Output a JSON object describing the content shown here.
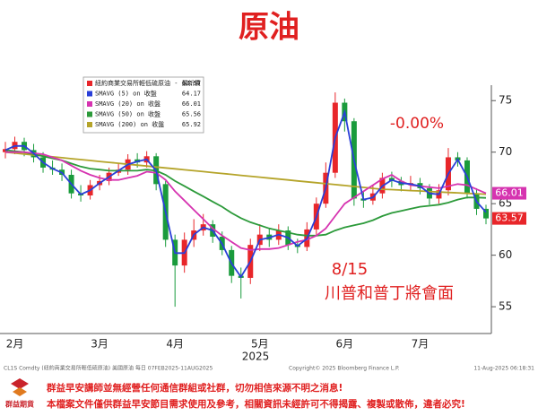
{
  "header": {
    "title": "原油"
  },
  "chart_data": {
    "type": "candlestick",
    "name": "紐約商業交易所輕低硫原油 - 最新價",
    "last": 63.57,
    "up_color": "#e8262a",
    "down_color": "#1a9b3c",
    "categories": [
      null,
      "2月",
      null,
      null,
      null,
      null,
      null,
      null,
      null,
      null,
      "3月",
      null,
      null,
      null,
      null,
      null,
      null,
      null,
      "4月",
      null,
      null,
      null,
      null,
      null,
      null,
      null,
      null,
      "5月",
      null,
      null,
      null,
      null,
      null,
      null,
      null,
      null,
      "6月",
      null,
      null,
      null,
      null,
      null,
      null,
      null,
      "7月",
      null,
      null,
      null,
      null,
      null,
      null,
      null
    ],
    "open": [
      70.0,
      70.3,
      71.0,
      70.2,
      69.5,
      68.5,
      68.3,
      67.8,
      66.0,
      65.8,
      66.8,
      67.2,
      68.0,
      68.3,
      69.3,
      69.0,
      69.6,
      66.9,
      61.5,
      59.0,
      61.5,
      62.4,
      63.0,
      61.8,
      60.5,
      58.0,
      57.8,
      61.0,
      62.0,
      61.5,
      62.4,
      61.0,
      60.8,
      62.5,
      65.0,
      68.0,
      74.8,
      73.0,
      65.5,
      65.3,
      66.0,
      67.5,
      67.2,
      66.8,
      67.0,
      66.5,
      65.5,
      66.3,
      69.5,
      69.2,
      66.0,
      64.5
    ],
    "high": [
      71.0,
      71.5,
      71.4,
      70.8,
      70.0,
      69.2,
      68.9,
      68.3,
      66.8,
      67.3,
      67.8,
      68.5,
      68.9,
      69.8,
      69.9,
      70.1,
      69.9,
      67.2,
      62.0,
      62.2,
      63.5,
      64.0,
      63.4,
      62.3,
      60.9,
      58.8,
      61.6,
      63.0,
      62.6,
      63.0,
      62.8,
      61.6,
      63.2,
      65.6,
      69.0,
      75.8,
      75.2,
      73.3,
      66.2,
      66.8,
      68.0,
      68.1,
      67.6,
      67.7,
      67.5,
      66.9,
      66.9,
      70.4,
      70.0,
      69.5,
      66.5,
      64.9
    ],
    "low": [
      69.4,
      69.8,
      69.6,
      69.0,
      68.0,
      67.8,
      67.2,
      65.5,
      65.2,
      65.4,
      66.3,
      66.8,
      67.7,
      67.8,
      68.5,
      68.5,
      66.3,
      60.8,
      55.0,
      58.3,
      60.8,
      61.9,
      61.2,
      60.0,
      57.3,
      55.8,
      57.2,
      60.4,
      60.8,
      61.0,
      60.5,
      60.2,
      60.4,
      62.0,
      64.6,
      67.5,
      72.0,
      64.8,
      64.6,
      64.9,
      65.5,
      66.6,
      66.2,
      66.3,
      65.9,
      64.9,
      65.0,
      65.8,
      68.6,
      65.5,
      63.9,
      63.0
    ],
    "close": [
      70.3,
      71.0,
      70.2,
      69.5,
      68.5,
      68.3,
      67.8,
      66.0,
      65.8,
      66.8,
      67.2,
      68.0,
      68.3,
      69.3,
      69.0,
      69.6,
      66.9,
      61.5,
      59.0,
      61.5,
      62.4,
      63.0,
      61.8,
      60.5,
      58.0,
      57.8,
      61.0,
      62.0,
      61.5,
      62.4,
      61.0,
      60.8,
      62.5,
      65.0,
      68.0,
      74.8,
      73.0,
      65.5,
      65.3,
      66.0,
      67.5,
      67.2,
      66.8,
      67.0,
      66.5,
      65.5,
      66.3,
      69.5,
      69.2,
      66.0,
      64.5,
      63.57
    ],
    "series": [
      {
        "name": "SMAVG (5)  on 收盤",
        "color": "#2a3fd8",
        "last": 64.17,
        "values": [
          70.2,
          70.6,
          70.6,
          69.9,
          69.0,
          68.4,
          68.0,
          66.9,
          65.9,
          66.3,
          67.0,
          67.6,
          68.2,
          68.8,
          69.1,
          69.3,
          68.2,
          64.2,
          60.2,
          60.2,
          62.0,
          62.7,
          62.4,
          61.1,
          59.2,
          57.9,
          59.4,
          61.5,
          61.7,
          62.0,
          61.7,
          60.9,
          61.6,
          63.7,
          66.5,
          71.4,
          73.9,
          69.2,
          65.4,
          65.6,
          66.7,
          67.3,
          67.0,
          66.9,
          66.7,
          66.0,
          65.9,
          67.9,
          69.3,
          67.6,
          65.2,
          64.17
        ]
      },
      {
        "name": "SMAVG (20) on 收盤",
        "color": "#d633b0",
        "last": 66.01,
        "values": [
          70.0,
          70.0,
          70.0,
          69.9,
          69.8,
          69.5,
          69.2,
          68.7,
          68.2,
          67.8,
          67.5,
          67.3,
          67.3,
          67.5,
          67.7,
          68.1,
          68.0,
          67.3,
          66.2,
          65.3,
          64.4,
          63.5,
          62.6,
          61.9,
          61.3,
          60.7,
          60.5,
          60.6,
          60.6,
          60.7,
          61.0,
          61.3,
          61.5,
          61.9,
          62.6,
          63.8,
          65.0,
          65.6,
          66.2,
          66.8,
          67.4,
          67.8,
          67.2,
          66.8,
          66.7,
          66.6,
          66.5,
          66.7,
          66.9,
          66.8,
          66.4,
          66.01
        ]
      },
      {
        "name": "SMAVG (50) on 收盤",
        "color": "#2c9a3a",
        "last": 65.56,
        "values": [
          70.2,
          70.1,
          70.0,
          69.8,
          69.6,
          69.4,
          69.2,
          68.9,
          68.6,
          68.4,
          68.3,
          68.2,
          68.2,
          68.2,
          68.2,
          68.3,
          68.2,
          67.8,
          67.2,
          66.7,
          66.2,
          65.7,
          65.2,
          64.7,
          64.1,
          63.6,
          63.2,
          62.9,
          62.6,
          62.4,
          62.2,
          62.0,
          61.9,
          61.9,
          62.0,
          62.4,
          62.7,
          62.9,
          63.1,
          63.4,
          63.8,
          64.1,
          64.3,
          64.5,
          64.7,
          64.8,
          64.9,
          65.1,
          65.4,
          65.6,
          65.6,
          65.56
        ]
      },
      {
        "name": "SMAVG (200) on 收盤",
        "color": "#b5a42a",
        "last": 65.92,
        "values": [
          70.0,
          69.91,
          69.82,
          69.73,
          69.64,
          69.55,
          69.46,
          69.37,
          69.28,
          69.19,
          69.1,
          69.01,
          68.92,
          68.83,
          68.74,
          68.65,
          68.56,
          68.47,
          68.38,
          68.29,
          68.2,
          68.11,
          68.02,
          67.93,
          67.84,
          67.75,
          67.66,
          67.57,
          67.48,
          67.39,
          67.3,
          67.21,
          67.12,
          67.03,
          66.94,
          66.85,
          66.76,
          66.67,
          66.58,
          66.49,
          66.4,
          66.36,
          66.32,
          66.27,
          66.23,
          66.18,
          66.14,
          66.09,
          66.05,
          66.0,
          65.96,
          65.92
        ]
      }
    ],
    "ylim": [
      52.4,
      76.5
    ],
    "yticks": [
      55,
      60,
      65,
      70,
      75
    ],
    "year_label": "2025",
    "annotations": [
      "-0.00%",
      "8/15",
      "川普和普丁將會面"
    ]
  },
  "footer": {
    "source": "CL1S Comdty (紐約商業交易所輕低硫原油) 美國原油   每日 07FEB2025-11AUG2025",
    "copyright": "Copyright© 2025 Bloomberg Finance L.P.",
    "timestamp": "11-Aug-2025 06:18:31"
  },
  "disclaimer": {
    "logo": "群益期貨",
    "lines": [
      "群益早安講師並無經營任何通信群組或社群，切勿相信來源不明之消息!",
      "本檔案文件僅供群益早安節目需求使用及參考，相關資訊未經許可不得揭露、複製或散佈，違者必究!"
    ]
  }
}
